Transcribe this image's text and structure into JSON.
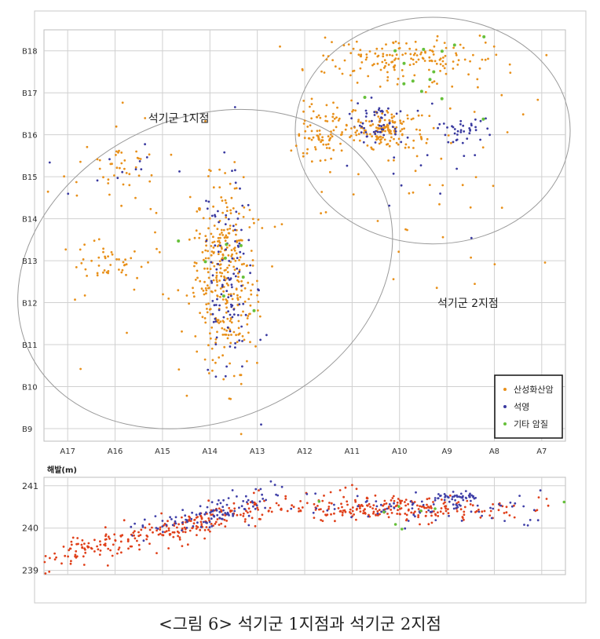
{
  "chart_data": [
    {
      "type": "scatter",
      "title": "",
      "x_ticks": [
        "A17",
        "A16",
        "A15",
        "A14",
        "A13",
        "A12",
        "A11",
        "A10",
        "A9",
        "A8",
        "A7"
      ],
      "y_ticks": [
        "B18",
        "B17",
        "B16",
        "B15",
        "B14",
        "B13",
        "B12",
        "B11",
        "B10",
        "B9"
      ],
      "x_range": [
        17.5,
        6.5
      ],
      "y_range": [
        8.7,
        18.5
      ],
      "grid": true,
      "legend_position": "bottom-right",
      "legend": [
        {
          "label": "산성화산암",
          "color": "#e8901a"
        },
        {
          "label": "석영",
          "color": "#3a3aa0"
        },
        {
          "label": "기타 암질",
          "color": "#66c03a"
        }
      ],
      "annotations": [
        {
          "text": "석기군  1지점",
          "x": 15.3,
          "y": 16.3
        },
        {
          "text": "석기군  2지점",
          "x": 9.2,
          "y": 11.9
        }
      ],
      "regions": [
        {
          "name": "1",
          "shape": "ellipse",
          "cx": 14.1,
          "cy": 12.8,
          "rx": 4.1,
          "ry": 3.6,
          "rotation": -25
        },
        {
          "name": "2",
          "shape": "ellipse",
          "cx": 9.3,
          "cy": 16.1,
          "rx": 2.9,
          "ry": 2.7,
          "rotation": 0
        }
      ],
      "clusters": [
        {
          "series": 0,
          "x": 13.7,
          "y": 12.6,
          "sx": 0.35,
          "sy": 1.1,
          "n": 340
        },
        {
          "series": 1,
          "x": 13.6,
          "y": 12.4,
          "sx": 0.3,
          "sy": 1.3,
          "n": 110
        },
        {
          "series": 2,
          "x": 13.7,
          "y": 12.8,
          "sx": 0.4,
          "sy": 1.0,
          "n": 8
        },
        {
          "series": 0,
          "x": 16.2,
          "y": 13.0,
          "sx": 0.4,
          "sy": 0.2,
          "n": 40
        },
        {
          "series": 0,
          "x": 15.8,
          "y": 15.3,
          "sx": 0.4,
          "sy": 0.2,
          "n": 30
        },
        {
          "series": 1,
          "x": 15.8,
          "y": 15.1,
          "sx": 0.5,
          "sy": 0.3,
          "n": 12
        },
        {
          "series": 0,
          "x": 16.0,
          "y": 14.0,
          "sx": 1.2,
          "sy": 1.6,
          "n": 40
        },
        {
          "series": 0,
          "x": 10.3,
          "y": 16.1,
          "sx": 0.35,
          "sy": 0.25,
          "n": 130
        },
        {
          "series": 1,
          "x": 10.4,
          "y": 16.3,
          "sx": 0.3,
          "sy": 0.25,
          "n": 55
        },
        {
          "series": 1,
          "x": 8.6,
          "y": 16.1,
          "sx": 0.25,
          "sy": 0.15,
          "n": 35
        },
        {
          "series": 0,
          "x": 11.6,
          "y": 16.0,
          "sx": 0.3,
          "sy": 0.4,
          "n": 90
        },
        {
          "series": 0,
          "x": 9.9,
          "y": 17.8,
          "sx": 1.0,
          "sy": 0.25,
          "n": 160
        },
        {
          "series": 2,
          "x": 9.6,
          "y": 17.5,
          "sx": 1.0,
          "sy": 0.4,
          "n": 14
        },
        {
          "series": 0,
          "x": 9.5,
          "y": 15.2,
          "sx": 1.2,
          "sy": 1.3,
          "n": 60
        },
        {
          "series": 1,
          "x": 9.5,
          "y": 15.3,
          "sx": 0.8,
          "sy": 0.6,
          "n": 15
        }
      ]
    },
    {
      "type": "scatter",
      "ylabel": "해발(m)",
      "y_ticks": [
        "241",
        "240",
        "239"
      ],
      "y_range": [
        238.9,
        241.2
      ],
      "x_range": [
        17.5,
        6.5
      ],
      "grid": true,
      "clusters": [
        {
          "series": 0,
          "x": 14.6,
          "y": 240.0,
          "sx": 1.4,
          "sy": 0.18,
          "n": 230,
          "trend": 0.28,
          "trend_x": 14.6
        },
        {
          "series": 1,
          "x": 13.9,
          "y": 240.2,
          "sx": 0.8,
          "sy": 0.15,
          "n": 110,
          "trend": 0.28,
          "trend_x": 14.6
        },
        {
          "series": 0,
          "x": 16.3,
          "y": 239.6,
          "sx": 0.7,
          "sy": 0.15,
          "n": 45,
          "trend": 0.3,
          "trend_x": 16.3
        },
        {
          "series": 0,
          "x": 10.0,
          "y": 240.45,
          "sx": 1.2,
          "sy": 0.15,
          "n": 230,
          "trend": 0,
          "trend_x": 10
        },
        {
          "series": 1,
          "x": 9.5,
          "y": 240.5,
          "sx": 1.3,
          "sy": 0.2,
          "n": 90,
          "trend": 0,
          "trend_x": 9.5
        },
        {
          "series": 1,
          "x": 8.7,
          "y": 240.75,
          "sx": 0.2,
          "sy": 0.05,
          "n": 30,
          "trend": 0,
          "trend_x": 8.7
        },
        {
          "series": 2,
          "x": 10.0,
          "y": 240.5,
          "sx": 1.5,
          "sy": 0.3,
          "n": 8,
          "trend": 0,
          "trend_x": 10
        }
      ]
    }
  ],
  "caption": "<그림 6> 석기군 1지점과 석기군 2지점"
}
